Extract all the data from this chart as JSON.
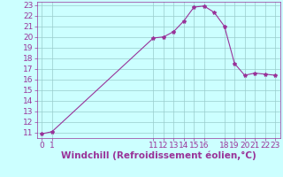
{
  "x": [
    0,
    1,
    11,
    12,
    13,
    14,
    15,
    16,
    17,
    18,
    19,
    20,
    21,
    22,
    23
  ],
  "y": [
    10.9,
    11.1,
    19.9,
    20.0,
    20.5,
    21.5,
    22.8,
    22.9,
    22.3,
    21.0,
    17.5,
    16.4,
    16.6,
    16.5,
    16.4
  ],
  "xlim": [
    -0.5,
    23.5
  ],
  "ylim": [
    10.5,
    23.3
  ],
  "xticks": [
    0,
    1,
    11,
    12,
    13,
    14,
    15,
    16,
    18,
    19,
    20,
    21,
    22,
    23
  ],
  "yticks": [
    11,
    12,
    13,
    14,
    15,
    16,
    17,
    18,
    19,
    20,
    21,
    22,
    23
  ],
  "line_color": "#993399",
  "marker": "*",
  "marker_size": 3,
  "bg_color": "#ccffff",
  "grid_color": "#99cccc",
  "xlabel": "Windchill (Refroidissement éolien,°C)",
  "xlabel_color": "#993399",
  "tick_color": "#993399",
  "spine_color": "#993399",
  "tick_fontsize": 6.5,
  "xlabel_fontsize": 7.5
}
